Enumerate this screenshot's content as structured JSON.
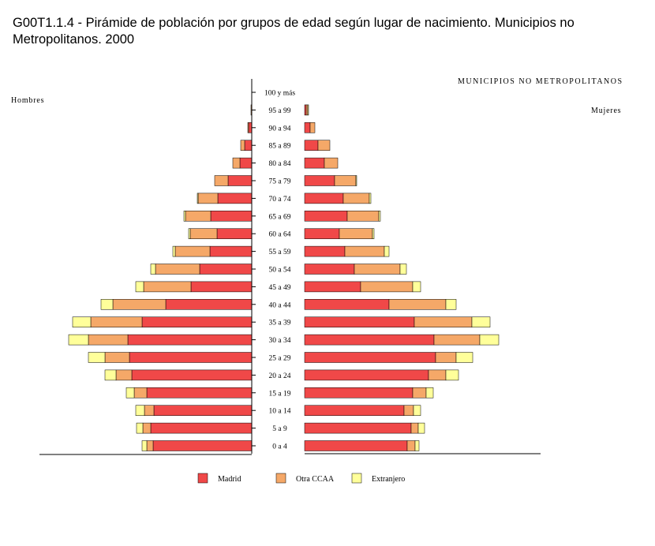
{
  "title": "G00T1.1.4 - Pirámide de población por grupos de edad según lugar de nacimiento. Municipios no Metropolitanos. 2000",
  "chart_data": {
    "type": "bar",
    "orientation": "horizontal-pyramid",
    "header_right": "MUNICIPIOS NO METROPOLITANOS",
    "left_label": "Hombres",
    "right_label": "Mujeres",
    "categories": [
      "0 a 4",
      "5 a 9",
      "10 a 14",
      "15 a 19",
      "20 a 24",
      "25 a 29",
      "30 a 34",
      "35 a 39",
      "40 a 44",
      "45 a 49",
      "50 a 54",
      "55 a 59",
      "60 a 64",
      "65 a 69",
      "70 a 74",
      "75 a 79",
      "80 a 84",
      "85 a 89",
      "90 a 94",
      "95 a 99",
      "100 y más"
    ],
    "legend": [
      "Madrid",
      "Otra CCAA",
      "Extranjero"
    ],
    "colors": {
      "Madrid": "#f04848",
      "Otra CCAA": "#f5a868",
      "Extranjero": "#ffff9a"
    },
    "hombres": {
      "Madrid": [
        125,
        128,
        124,
        133,
        152,
        155,
        157,
        139,
        109,
        77,
        66,
        53,
        44,
        52,
        43,
        30,
        15,
        9,
        4,
        0,
        0
      ],
      "Otra CCAA": [
        8,
        10,
        12,
        16,
        20,
        31,
        50,
        65,
        67,
        60,
        56,
        44,
        34,
        32,
        25,
        17,
        9,
        5,
        1,
        1,
        0
      ],
      "Extranjero": [
        6,
        8,
        11,
        10,
        14,
        21,
        25,
        23,
        15,
        10,
        6,
        3,
        2,
        2,
        1,
        0,
        0,
        0,
        0,
        0,
        0
      ]
    },
    "mujeres": {
      "Madrid": [
        130,
        135,
        126,
        137,
        157,
        166,
        164,
        139,
        107,
        71,
        63,
        51,
        44,
        54,
        49,
        38,
        25,
        17,
        7,
        2,
        0
      ],
      "Otra CCAA": [
        10,
        9,
        12,
        17,
        22,
        26,
        58,
        73,
        72,
        66,
        58,
        50,
        42,
        40,
        33,
        27,
        17,
        15,
        6,
        2,
        0
      ],
      "Extranjero": [
        5,
        8,
        9,
        9,
        16,
        21,
        24,
        23,
        13,
        10,
        8,
        6,
        2,
        2,
        2,
        1,
        0,
        0,
        0,
        1,
        0
      ]
    }
  }
}
